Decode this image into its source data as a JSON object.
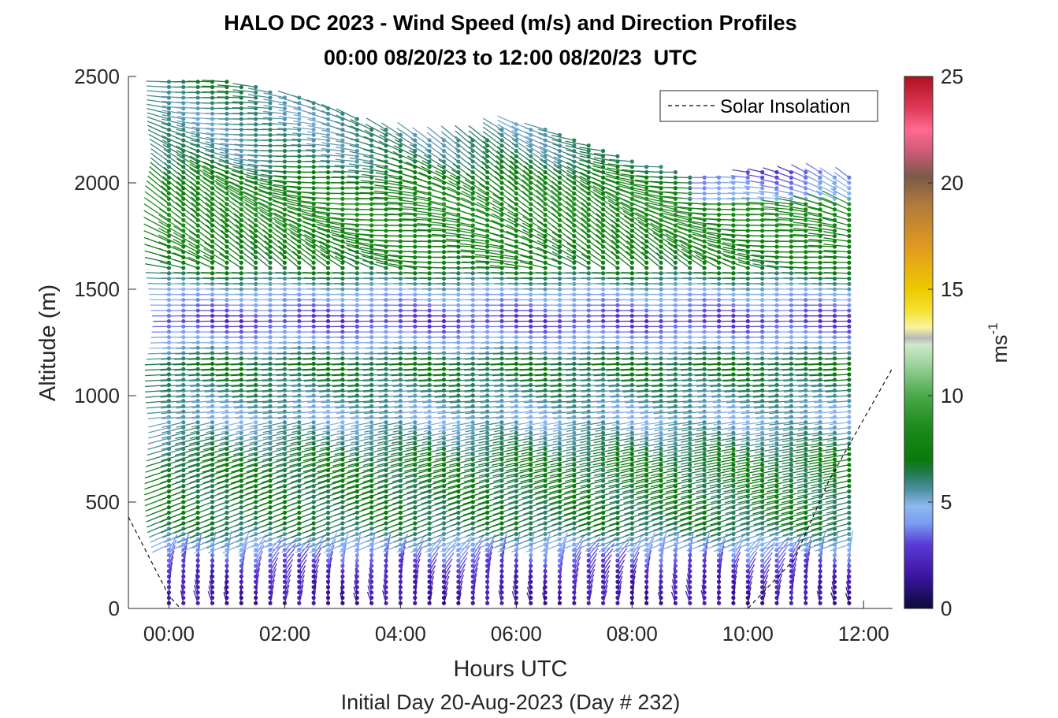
{
  "chart_data": {
    "type": "quiver",
    "title": "HALO DC 2023 - Wind Speed (m/s) and Direction Profiles",
    "subtitle": "00:00 08/20/23 to 12:00 08/20/23  UTC",
    "xlabel": "Hours UTC",
    "xlabel2": "Initial Day 20-Aug-2023 (Day # 232)",
    "ylabel": "Altitude (m)",
    "xlim": [
      -0.7,
      12.5
    ],
    "ylim": [
      0,
      2500
    ],
    "xticks": [
      {
        "value": 0,
        "label": "00:00"
      },
      {
        "value": 2,
        "label": "02:00"
      },
      {
        "value": 4,
        "label": "04:00"
      },
      {
        "value": 6,
        "label": "06:00"
      },
      {
        "value": 8,
        "label": "08:00"
      },
      {
        "value": 10,
        "label": "10:00"
      },
      {
        "value": 12,
        "label": "12:00"
      }
    ],
    "yticks": [
      {
        "value": 0,
        "label": "0"
      },
      {
        "value": 500,
        "label": "500"
      },
      {
        "value": 1000,
        "label": "1000"
      },
      {
        "value": 1500,
        "label": "1500"
      },
      {
        "value": 2000,
        "label": "2000"
      },
      {
        "value": 2500,
        "label": "2500"
      }
    ],
    "legend": {
      "placement": "top-right",
      "entries": [
        {
          "label": "Solar Insolation",
          "style": "dashed",
          "color": "#000000"
        }
      ]
    },
    "colorbar": {
      "label": "ms",
      "label_exponent": "-1",
      "range": [
        0,
        25
      ],
      "ticks": [
        {
          "value": 0,
          "label": "0"
        },
        {
          "value": 5,
          "label": "5"
        },
        {
          "value": 10,
          "label": "10"
        },
        {
          "value": 15,
          "label": "15"
        },
        {
          "value": 20,
          "label": "20"
        },
        {
          "value": 25,
          "label": "25"
        }
      ],
      "stops": [
        {
          "value": 0,
          "color": "#0d0a3a"
        },
        {
          "value": 1.5,
          "color": "#3b14a0"
        },
        {
          "value": 3,
          "color": "#5a3ad6"
        },
        {
          "value": 4,
          "color": "#7a9cf2"
        },
        {
          "value": 4.8,
          "color": "#8fb8f0"
        },
        {
          "value": 5.6,
          "color": "#4a8fa0"
        },
        {
          "value": 6.4,
          "color": "#1f7a4a"
        },
        {
          "value": 7,
          "color": "#0a7a0a"
        },
        {
          "value": 8.5,
          "color": "#1c8a1c"
        },
        {
          "value": 10,
          "color": "#4aa84a"
        },
        {
          "value": 11.5,
          "color": "#9fd49f"
        },
        {
          "value": 12.4,
          "color": "#d0e8cc"
        },
        {
          "value": 12.7,
          "color": "#b8b8b8"
        },
        {
          "value": 13.2,
          "color": "#f8f4a0"
        },
        {
          "value": 14,
          "color": "#f4e030"
        },
        {
          "value": 15,
          "color": "#f0c800"
        },
        {
          "value": 17,
          "color": "#e09a20"
        },
        {
          "value": 19,
          "color": "#b07a3a"
        },
        {
          "value": 20.3,
          "color": "#7a5a48"
        },
        {
          "value": 21.5,
          "color": "#d05a7a"
        },
        {
          "value": 22.5,
          "color": "#ff6a90"
        },
        {
          "value": 23.5,
          "color": "#e03a5a"
        },
        {
          "value": 25,
          "color": "#b01020"
        }
      ]
    },
    "vectors": {
      "times_hours": [
        0,
        0.25,
        0.5,
        0.75,
        1,
        1.25,
        1.5,
        1.75,
        2,
        2.25,
        2.5,
        2.75,
        3,
        3.25,
        3.5,
        3.75,
        4,
        4.25,
        4.5,
        4.75,
        5,
        5.25,
        5.5,
        5.75,
        6,
        6.25,
        6.5,
        6.75,
        7,
        7.25,
        7.5,
        7.75,
        8,
        8.25,
        8.5,
        8.75,
        9,
        9.25,
        9.5,
        9.75,
        10,
        10.25,
        10.5,
        10.75,
        11,
        11.25,
        11.5,
        11.75
      ],
      "altitudes_m": [
        25,
        50,
        75,
        100,
        125,
        150,
        175,
        200,
        225,
        250,
        275,
        300,
        325,
        350,
        375,
        400,
        425,
        450,
        475,
        500,
        525,
        550,
        575,
        600,
        625,
        650,
        675,
        700,
        725,
        750,
        775,
        800,
        825,
        850,
        875,
        900,
        925,
        950,
        975,
        1000,
        1025,
        1050,
        1075,
        1100,
        1125,
        1150,
        1175,
        1200,
        1225,
        1250,
        1275,
        1300,
        1325,
        1350,
        1375,
        1400,
        1425,
        1450,
        1475,
        1500,
        1525,
        1550,
        1575,
        1600,
        1625,
        1650,
        1675,
        1700,
        1725,
        1750,
        1775,
        1800,
        1825,
        1850,
        1875,
        1900,
        1925,
        1950,
        1975,
        2000,
        2025,
        2050,
        2075,
        2100,
        2125,
        2150,
        2175,
        2200,
        2225,
        2250,
        2275,
        2300,
        2325,
        2350,
        2375,
        2400,
        2425,
        2450,
        2475
      ],
      "top_altitude_m": [
        {
          "hour": 0,
          "alt": 2490
        },
        {
          "hour": 1,
          "alt": 2480
        },
        {
          "hour": 2,
          "alt": 2420
        },
        {
          "hour": 3,
          "alt": 2340
        },
        {
          "hour": 3.5,
          "alt": 2270
        },
        {
          "hour": 4.5,
          "alt": 2220
        },
        {
          "hour": 5.5,
          "alt": 2220
        },
        {
          "hour": 6,
          "alt": 2280
        },
        {
          "hour": 7,
          "alt": 2220
        },
        {
          "hour": 8,
          "alt": 2120
        },
        {
          "hour": 9,
          "alt": 2030
        },
        {
          "hour": 10,
          "alt": 2050
        },
        {
          "hour": 11,
          "alt": 2060
        },
        {
          "hour": 11.75,
          "alt": 2040
        }
      ],
      "speed_profile_ms": [
        {
          "alt": 0,
          "speed": 1.5
        },
        {
          "alt": 150,
          "speed": 2.2
        },
        {
          "alt": 280,
          "speed": 4.2
        },
        {
          "alt": 400,
          "speed": 6.5
        },
        {
          "alt": 700,
          "speed": 6.8
        },
        {
          "alt": 900,
          "speed": 5.0
        },
        {
          "alt": 1000,
          "speed": 5.8
        },
        {
          "alt": 1150,
          "speed": 6.8
        },
        {
          "alt": 1250,
          "speed": 4.6
        },
        {
          "alt": 1350,
          "speed": 2.8
        },
        {
          "alt": 1480,
          "speed": 4.6
        },
        {
          "alt": 1600,
          "speed": 7.0
        },
        {
          "alt": 1900,
          "speed": 8.5
        },
        {
          "alt": 2100,
          "speed": 6.0
        },
        {
          "alt": 2300,
          "speed": 5.5
        },
        {
          "alt": 2500,
          "speed": 6.5
        }
      ]
    },
    "solar_insolation": {
      "line_style": "dashed",
      "points": [
        {
          "hour": -0.7,
          "alt": 430
        },
        {
          "hour": 0,
          "alt": 60
        },
        {
          "hour": 0.2,
          "alt": 0
        },
        {
          "hour": 10,
          "alt": 0
        },
        {
          "hour": 10.8,
          "alt": 230
        },
        {
          "hour": 11.4,
          "alt": 600
        },
        {
          "hour": 12.5,
          "alt": 1130
        }
      ]
    }
  }
}
